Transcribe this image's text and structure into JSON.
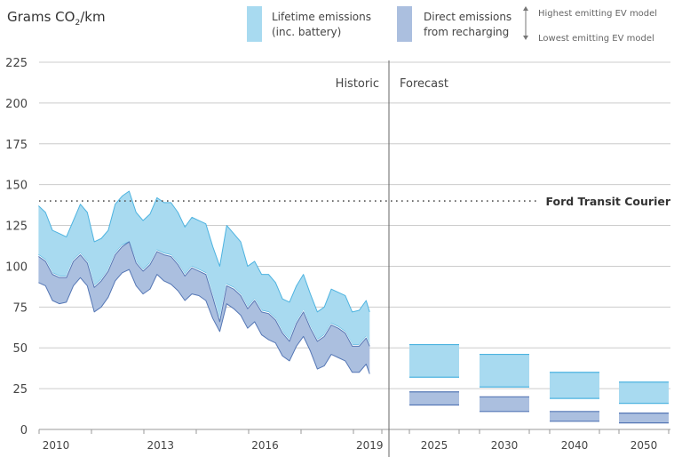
{
  "chart_data": {
    "type": "area",
    "title": "",
    "ylabel": "Grams CO2/km",
    "ylabel_parts": {
      "main": "Grams CO",
      "sub": "2",
      "unit": "/km"
    },
    "ylim": [
      0,
      225
    ],
    "yticks": [
      0,
      25,
      50,
      75,
      100,
      125,
      150,
      175,
      200,
      225
    ],
    "grid": true,
    "legend": {
      "placement": "top",
      "lifetime": {
        "line1": "Lifetime emissions",
        "line2": "(inc. battery)"
      },
      "direct": {
        "line1": "Direct emissions",
        "line2": "from recharging"
      },
      "high": "Highest emitting EV model",
      "low": "Lowest emitting EV model"
    },
    "colors": {
      "lifetime_fill": "#a8daf0",
      "lifetime_line": "#4db3e0",
      "direct_fill": "#abbfdf",
      "direct_line": "#5577b5",
      "grid": "#cccccc",
      "text": "#444444"
    },
    "annotations": {
      "historic": "Historic",
      "forecast": "Forecast",
      "reference_label": "Ford Transit Courier",
      "reference_value": 140
    },
    "historic": {
      "xticks": [
        "2010",
        "2013",
        "2016",
        "2019"
      ],
      "x": [
        2009.5,
        2009.7,
        2009.9,
        2010.1,
        2010.3,
        2010.5,
        2010.7,
        2010.9,
        2011.1,
        2011.3,
        2011.5,
        2011.7,
        2011.9,
        2012.1,
        2012.3,
        2012.5,
        2012.7,
        2012.9,
        2013.1,
        2013.3,
        2013.5,
        2013.7,
        2013.9,
        2014.1,
        2014.3,
        2014.5,
        2014.7,
        2014.9,
        2015.1,
        2015.3,
        2015.5,
        2015.7,
        2015.9,
        2016.1,
        2016.3,
        2016.5,
        2016.7,
        2016.9,
        2017.1,
        2017.3,
        2017.5,
        2017.7,
        2017.9,
        2018.1,
        2018.3,
        2018.5,
        2018.7,
        2018.9,
        2019.0
      ],
      "series": [
        {
          "name": "Lifetime emissions - highest",
          "values": [
            137,
            133,
            122,
            120,
            118,
            128,
            138,
            133,
            115,
            117,
            122,
            138,
            143,
            146,
            133,
            128,
            132,
            142,
            139,
            139,
            133,
            124,
            130,
            128,
            126,
            112,
            100,
            125,
            120,
            115,
            100,
            103,
            95,
            95,
            90,
            80,
            78,
            88,
            95,
            83,
            72,
            75,
            86,
            84,
            82,
            72,
            73,
            79,
            72
          ]
        },
        {
          "name": "Lifetime emissions - lowest",
          "values": [
            107,
            104,
            96,
            94,
            94,
            104,
            108,
            103,
            88,
            92,
            98,
            108,
            113,
            115,
            103,
            98,
            102,
            110,
            108,
            107,
            102,
            95,
            100,
            98,
            96,
            82,
            67,
            89,
            87,
            83,
            75,
            80,
            73,
            72,
            68,
            60,
            55,
            66,
            73,
            63,
            55,
            58,
            65,
            63,
            60,
            52,
            52,
            57,
            52
          ]
        },
        {
          "name": "Direct emissions - highest",
          "values": [
            106,
            103,
            95,
            93,
            93,
            103,
            107,
            102,
            87,
            91,
            97,
            107,
            112,
            115,
            102,
            97,
            101,
            109,
            107,
            106,
            101,
            94,
            99,
            97,
            95,
            81,
            66,
            88,
            86,
            82,
            74,
            79,
            72,
            71,
            67,
            59,
            54,
            65,
            72,
            62,
            54,
            57,
            64,
            62,
            59,
            51,
            51,
            56,
            51
          ]
        },
        {
          "name": "Direct emissions - lowest",
          "values": [
            90,
            88,
            79,
            77,
            78,
            88,
            93,
            88,
            72,
            75,
            81,
            91,
            96,
            98,
            88,
            83,
            86,
            95,
            91,
            89,
            85,
            79,
            83,
            82,
            79,
            68,
            60,
            77,
            74,
            70,
            62,
            66,
            58,
            55,
            53,
            45,
            42,
            51,
            57,
            48,
            37,
            39,
            46,
            44,
            42,
            35,
            35,
            40,
            34
          ]
        }
      ]
    },
    "forecast": {
      "categories": [
        "2025",
        "2030",
        "2040",
        "2050"
      ],
      "lifetime": {
        "high": [
          52,
          46,
          35,
          29
        ],
        "low": [
          32,
          26,
          19,
          16
        ]
      },
      "direct": {
        "high": [
          23,
          20,
          11,
          10
        ],
        "low": [
          15,
          11,
          5,
          4
        ]
      }
    }
  }
}
